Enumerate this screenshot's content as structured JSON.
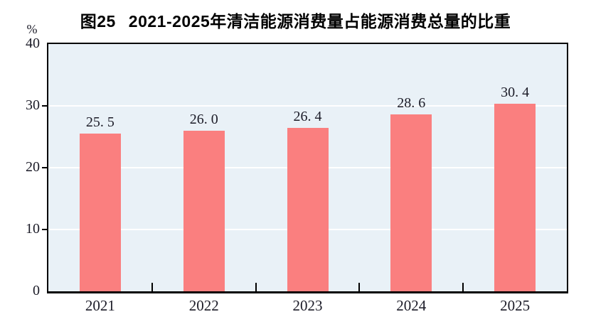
{
  "figure": {
    "title_prefix": "图25",
    "title_text": "2021-2025年清洁能源消费量占能源消费总量的比重",
    "unit_label": "%"
  },
  "chart_data": {
    "type": "bar",
    "title": "图25 2021-2025年清洁能源消费量占能源消费总量的比重",
    "categories": [
      "2021",
      "2022",
      "2023",
      "2024",
      "2025"
    ],
    "values": [
      25.5,
      26.0,
      26.4,
      28.6,
      30.4
    ],
    "value_labels": [
      "25. 5",
      "26. 0",
      "26. 4",
      "28. 6",
      "30. 4"
    ],
    "xlabel": "",
    "ylabel": "%",
    "ylim": [
      0,
      40
    ],
    "yticks": [
      0,
      10,
      20,
      30,
      40
    ],
    "grid": "horizontal gridlines at 10, 20, 30 (white lines on light blue plot background)",
    "legend": "none",
    "colors": {
      "bar": "#FA7F7F",
      "plot_background": "#E9F1F7",
      "gridline": "#FFFFFF",
      "axis": "#000000",
      "label_text": "#1B1B27",
      "title_text": "#000000"
    }
  }
}
